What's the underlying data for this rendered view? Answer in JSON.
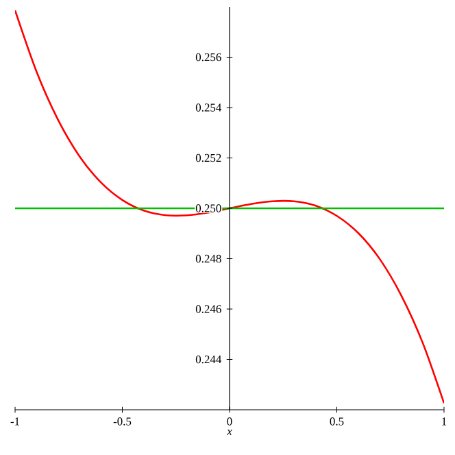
{
  "chart_data": {
    "type": "line",
    "xlabel": "*x*",
    "xlim": [
      -1,
      1
    ],
    "ylim": [
      0.242,
      0.258
    ],
    "xticks": [
      -1,
      -0.5,
      0,
      0.5,
      1
    ],
    "yticks": [
      0.244,
      0.246,
      0.248,
      {
        "value": 0.25,
        "label": "0.250"
      },
      0.252,
      0.254,
      0.256
    ],
    "grid": false,
    "marker": "none",
    "line_style": "solid",
    "series": [
      {
        "color": "#ff0000",
        "x": [
          -1,
          -0.9,
          -0.8,
          -0.7,
          -0.6,
          -0.5,
          -0.4,
          -0.3,
          -0.2,
          -0.1,
          0,
          0.1,
          0.2,
          0.3,
          0.4,
          0.5,
          0.6,
          0.7,
          0.8,
          0.9,
          1
        ],
        "values": [
          0.25786,
          0.25543,
          0.25352,
          0.25207,
          0.25103,
          0.25033,
          0.24991,
          0.24973,
          0.24972,
          0.24983,
          0.25,
          0.25017,
          0.25028,
          0.25028,
          0.25011,
          0.2497,
          0.24902,
          0.24799,
          0.24655,
          0.24467,
          0.24226
        ]
      },
      {
        "color": "#00c000",
        "x": [
          -1,
          1
        ],
        "values": [
          0.25,
          0.25
        ]
      }
    ]
  }
}
